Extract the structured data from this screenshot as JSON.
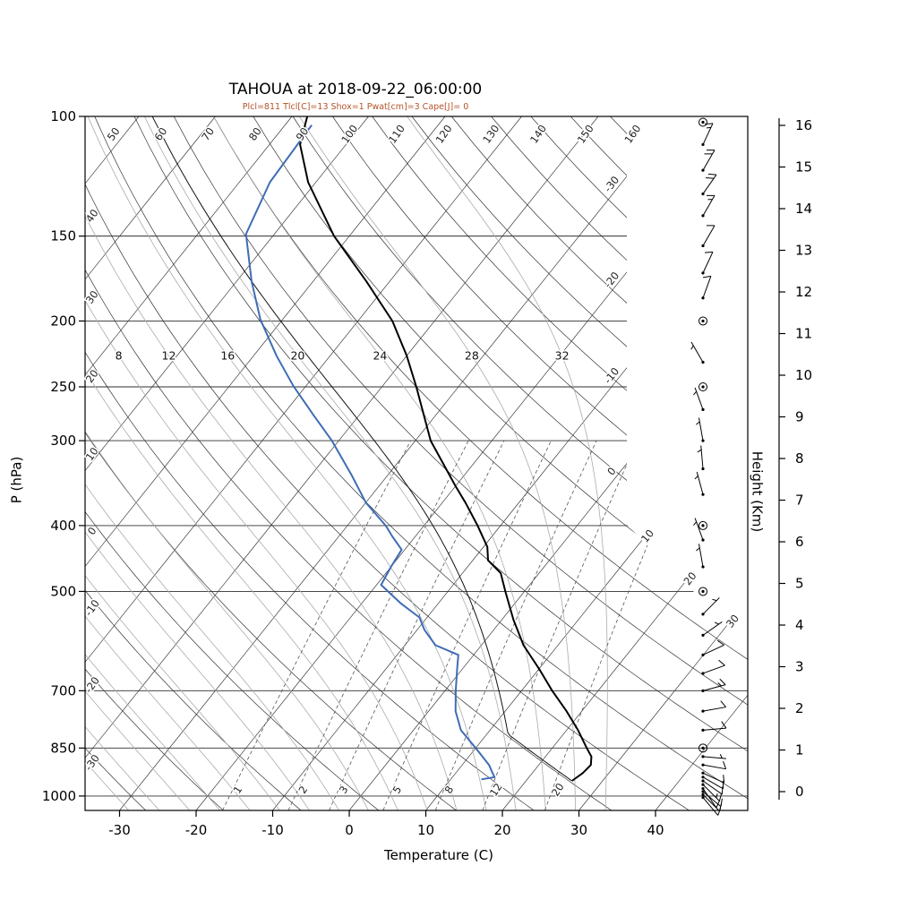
{
  "chart_data": {
    "type": "skewt-logp",
    "title": "TAHOUA at 2018-09-22_06:00:00",
    "subtitle": "Plcl=811 Tlcl[C]=13 Shox=1 Pwat[cm]=3 Cape[J]= 0",
    "axes": {
      "pressure": {
        "label": "P (hPa)",
        "ticks": [
          100,
          150,
          200,
          250,
          300,
          400,
          500,
          700,
          850,
          1000
        ],
        "range": [
          100,
          1050
        ],
        "scale": "log"
      },
      "temperature": {
        "label": "Temperature (C)",
        "ticks": [
          -30,
          -20,
          -10,
          0,
          10,
          20,
          30,
          40
        ]
      },
      "height": {
        "label": "Height (Km)",
        "ticks": [
          0,
          1,
          2,
          3,
          4,
          5,
          6,
          7,
          8,
          9,
          10,
          11,
          12,
          13,
          14,
          15,
          16
        ]
      }
    },
    "grid": {
      "isotherms": {
        "min": -110,
        "max": 40,
        "step": 10
      },
      "dry_adiabats": {
        "min": -40,
        "max": 200,
        "step": 10
      },
      "moist_adiabats": {
        "min": -32,
        "max": 32,
        "step": 4
      },
      "mixing_ratio_lines": [
        1,
        2,
        3,
        5,
        8,
        12,
        20
      ]
    },
    "grid_labels": {
      "dry_adiabats_left": [
        40,
        30,
        20,
        10,
        0,
        -10,
        -20,
        -30
      ],
      "dry_adiabats_top": [
        50,
        60,
        70,
        80,
        90,
        100,
        110,
        120,
        130,
        140,
        150,
        160
      ],
      "isotherms_right_upper": [
        -30,
        -20,
        -10,
        0
      ],
      "isotherms_right_lower": [
        10,
        20,
        30
      ],
      "moist_adiabat_row": [
        8,
        12,
        16,
        20,
        24,
        28,
        32
      ],
      "mixing_ratio": [
        1,
        2,
        3,
        5,
        8,
        12,
        20
      ]
    },
    "series": {
      "temperature_c": [
        [
          950,
          26.0
        ],
        [
          925,
          26.6
        ],
        [
          900,
          26.8
        ],
        [
          875,
          26.0
        ],
        [
          850,
          24.5
        ],
        [
          800,
          21.5
        ],
        [
          750,
          18.0
        ],
        [
          700,
          14.0
        ],
        [
          650,
          10.0
        ],
        [
          600,
          5.5
        ],
        [
          550,
          1.5
        ],
        [
          500,
          -2.5
        ],
        [
          470,
          -5.0
        ],
        [
          450,
          -8.0
        ],
        [
          430,
          -9.5
        ],
        [
          400,
          -13.0
        ],
        [
          370,
          -17.0
        ],
        [
          350,
          -20.0
        ],
        [
          300,
          -28.0
        ],
        [
          250,
          -35.5
        ],
        [
          225,
          -40.0
        ],
        [
          200,
          -45.5
        ],
        [
          175,
          -53.0
        ],
        [
          150,
          -62.0
        ],
        [
          125,
          -71.0
        ],
        [
          110,
          -76.0
        ],
        [
          100,
          -78.0
        ]
      ],
      "dewpoint_c": [
        [
          945,
          14.0
        ],
        [
          938,
          15.5
        ],
        [
          925,
          14.8
        ],
        [
          900,
          13.5
        ],
        [
          850,
          10.0
        ],
        [
          800,
          6.2
        ],
        [
          750,
          3.5
        ],
        [
          700,
          1.4
        ],
        [
          650,
          -0.7
        ],
        [
          620,
          -2.0
        ],
        [
          600,
          -6.0
        ],
        [
          570,
          -9.0
        ],
        [
          546,
          -11.0
        ],
        [
          520,
          -15.0
        ],
        [
          489,
          -19.4
        ],
        [
          460,
          -20.0
        ],
        [
          434,
          -20.4
        ],
        [
          415,
          -23.0
        ],
        [
          400,
          -25.0
        ],
        [
          370,
          -30.0
        ],
        [
          338,
          -34.6
        ],
        [
          300,
          -40.9
        ],
        [
          275,
          -46.0
        ],
        [
          249,
          -51.7
        ],
        [
          225,
          -57.0
        ],
        [
          199,
          -62.9
        ],
        [
          175,
          -68.0
        ],
        [
          149,
          -73.7
        ],
        [
          125,
          -76.0
        ],
        [
          103,
          -76.5
        ]
      ],
      "parcel": {
        "surface_pressure_hpa": 950,
        "surface_temp_c": 26.0,
        "lcl_pressure_hpa": 811,
        "lcl_temp_c": 13
      }
    },
    "wind_barbs_p_kt_dir": [
      [
        1005,
        8,
        140
      ],
      [
        995,
        10,
        135
      ],
      [
        985,
        12,
        130
      ],
      [
        975,
        10,
        145
      ],
      [
        962,
        13,
        135
      ],
      [
        950,
        12,
        125
      ],
      [
        938,
        9,
        120
      ],
      [
        925,
        10,
        115
      ],
      [
        900,
        10,
        100
      ],
      [
        875,
        7,
        95
      ],
      [
        850,
        0,
        0
      ],
      [
        800,
        10,
        85
      ],
      [
        750,
        12,
        80
      ],
      [
        700,
        13,
        75
      ],
      [
        660,
        10,
        70
      ],
      [
        620,
        8,
        65
      ],
      [
        580,
        6,
        55
      ],
      [
        540,
        5,
        45
      ],
      [
        500,
        0,
        0
      ],
      [
        460,
        4,
        350
      ],
      [
        420,
        5,
        340
      ],
      [
        400,
        0,
        0
      ],
      [
        360,
        6,
        345
      ],
      [
        330,
        5,
        355
      ],
      [
        300,
        7,
        350
      ],
      [
        270,
        5,
        340
      ],
      [
        250,
        0,
        0
      ],
      [
        230,
        4,
        330
      ],
      [
        200,
        0,
        0
      ],
      [
        185,
        8,
        20
      ],
      [
        170,
        10,
        25
      ],
      [
        155,
        12,
        30
      ],
      [
        140,
        15,
        30
      ],
      [
        130,
        18,
        35
      ],
      [
        120,
        20,
        30
      ],
      [
        110,
        15,
        25
      ],
      [
        102,
        0,
        0
      ]
    ],
    "colors": {
      "temperature": "#000000",
      "dewpoint": "#3f6cb5",
      "parcel": "#111111",
      "grid_dark": "#2f2f2f",
      "moist_adiabat": "#ababab",
      "mixing": "#555555",
      "subtitle": "#b4532a"
    }
  }
}
